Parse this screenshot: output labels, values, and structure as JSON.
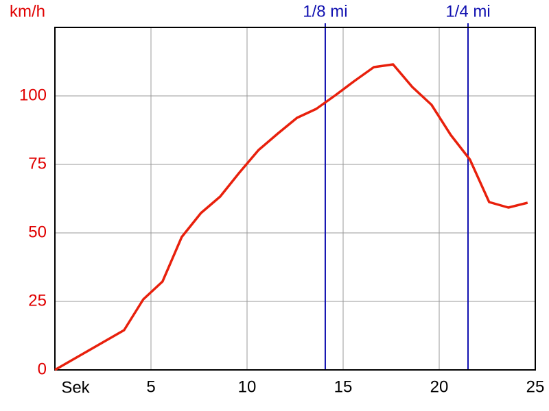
{
  "chart_data": {
    "type": "line",
    "y_label": "km/h",
    "x_label": "Sek",
    "x": [
      0,
      3.6,
      4.6,
      5.6,
      6.6,
      7.6,
      8.6,
      9.6,
      10.6,
      11.6,
      12.6,
      13.6,
      14.6,
      15.6,
      16.6,
      17.6,
      18.6,
      19.6,
      20.6,
      21.6,
      22.6,
      23.6,
      24.6
    ],
    "values": [
      0,
      14.5,
      25.75,
      32.25,
      48.5,
      57.25,
      63.25,
      72,
      80.25,
      86.25,
      92,
      95.25,
      100.25,
      105.5,
      110.5,
      111.5,
      103.25,
      96.75,
      85.75,
      76.75,
      61.25,
      59.25,
      61
    ],
    "color": "#e8200c",
    "xlim": [
      0,
      25
    ],
    "xticks": [
      5,
      10,
      15,
      20,
      25
    ],
    "ylim": [
      0,
      125
    ],
    "yticks": [
      0,
      25,
      50,
      75,
      100
    ],
    "grid": true,
    "y_axis_color": "#e00000",
    "markers": [
      {
        "value": 14.07,
        "label": "1/8 mi"
      },
      {
        "value": 21.5,
        "label": "1/4 mi"
      }
    ],
    "marker_color": "#1010b0"
  }
}
